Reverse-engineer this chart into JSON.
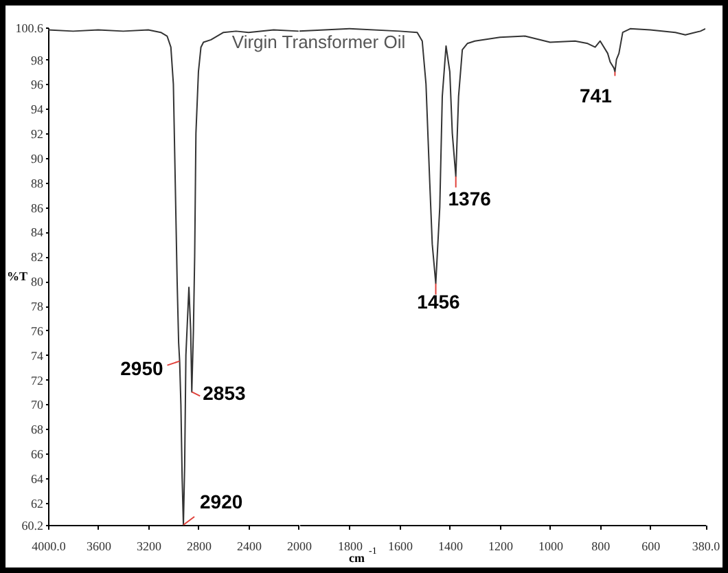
{
  "chart_data": [
    {
      "type": "line",
      "title": "Virgin Transformer Oil",
      "ylabel": "%T",
      "xlim": [
        4000,
        2000
      ],
      "ylim": [
        60.2,
        100.6
      ],
      "xticks": [
        {
          "value": 4000,
          "label": "4000.0"
        },
        3600,
        3200,
        2800,
        2400,
        2000
      ],
      "yticks": [
        60.2,
        62,
        64,
        66,
        68,
        70,
        72,
        74,
        76,
        78,
        80,
        82,
        84,
        86,
        88,
        90,
        92,
        94,
        96,
        98,
        100.6
      ],
      "grid": false,
      "marker": "none",
      "line_style": "solid",
      "series": [
        {
          "color": "#333333",
          "x": [
            4000,
            3800,
            3600,
            3400,
            3200,
            3100,
            3050,
            3020,
            3000,
            2985,
            2970,
            2958,
            2950,
            2940,
            2930,
            2920,
            2910,
            2900,
            2876,
            2862,
            2853,
            2840,
            2830,
            2820,
            2800,
            2780,
            2760,
            2700,
            2600,
            2500,
            2400,
            2200,
            2000
          ],
          "values": [
            100.4,
            100.3,
            100.4,
            100.3,
            100.4,
            100.2,
            99.9,
            99,
            96,
            88,
            80,
            75,
            73.5,
            70,
            64,
            60.2,
            65,
            74,
            79.5,
            76,
            71,
            76,
            82,
            92,
            97,
            99,
            99.4,
            99.6,
            100.2,
            100.3,
            100.2,
            100.4,
            100.3
          ]
        }
      ],
      "annotations": [
        {
          "text": "2950",
          "x": 2950,
          "y": 73.5
        },
        {
          "text": "2853",
          "x": 2853,
          "y": 71
        },
        {
          "text": "2920",
          "x": 2920,
          "y": 60.2
        }
      ]
    },
    {
      "type": "line",
      "xlabel": "cm$^{-1}$",
      "xlim": [
        2000,
        380
      ],
      "ylim": [
        60.2,
        100.6
      ],
      "xticks": [
        1800,
        1600,
        1400,
        1200,
        1000,
        800,
        600,
        {
          "value": 380,
          "label": "380.0"
        }
      ],
      "tick_labels": "x",
      "grid": false,
      "marker": "none",
      "line_style": "solid",
      "series": [
        {
          "color": "#333333",
          "x": [
            2000,
            1800,
            1600,
            1530,
            1510,
            1495,
            1480,
            1470,
            1456,
            1440,
            1430,
            1415,
            1400,
            1390,
            1376,
            1365,
            1350,
            1330,
            1300,
            1200,
            1100,
            1000,
            900,
            850,
            820,
            800,
            770,
            760,
            745,
            741,
            735,
            725,
            710,
            680,
            600,
            500,
            460,
            400,
            380
          ],
          "values": [
            100.3,
            100.5,
            100.3,
            100.2,
            99.5,
            96,
            88,
            83,
            79.8,
            86,
            95,
            99.1,
            97,
            92,
            88.5,
            95,
            98.8,
            99.3,
            99.5,
            99.8,
            99.9,
            99.4,
            99.5,
            99.3,
            99,
            99.5,
            98.5,
            97.8,
            97.3,
            97,
            98,
            98.5,
            100.2,
            100.5,
            100.4,
            100.2,
            100,
            100.3,
            100.5
          ]
        }
      ],
      "annotations": [
        {
          "text": "1456",
          "x": 1456,
          "y": 79.8
        },
        {
          "text": "1376",
          "x": 1376,
          "y": 88.5
        },
        {
          "text": "741",
          "x": 741,
          "y": 97
        }
      ]
    }
  ]
}
